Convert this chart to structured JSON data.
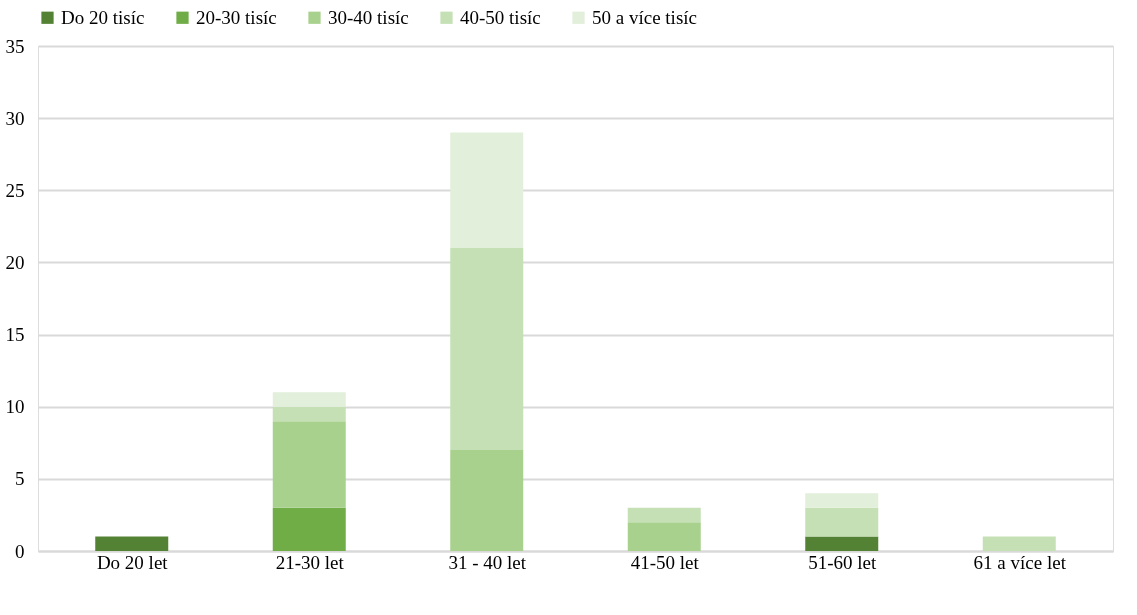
{
  "chart_data": {
    "type": "bar",
    "stacked": true,
    "categories": [
      "Do 20 let",
      "21-30 let",
      "31 - 40 let",
      "41-50 let",
      "51-60 let",
      "61 a více let"
    ],
    "series": [
      {
        "name": "Do 20 tisíc",
        "color": "#548235",
        "values": [
          1,
          null,
          null,
          null,
          1,
          null
        ]
      },
      {
        "name": "20-30 tisíc",
        "color": "#70ad47",
        "values": [
          null,
          3,
          null,
          null,
          null,
          null
        ]
      },
      {
        "name": "30-40 tisíc",
        "color": "#a9d18e",
        "values": [
          null,
          6,
          7,
          2,
          null,
          null
        ]
      },
      {
        "name": "40-50 tisíc",
        "color": "#c5e0b4",
        "values": [
          null,
          1,
          14,
          1,
          2,
          1
        ]
      },
      {
        "name": "50 a více tisíc",
        "color": "#e2efda",
        "values": [
          null,
          1,
          8,
          null,
          1,
          null
        ]
      }
    ],
    "ylim": [
      0,
      35
    ],
    "yticks": [
      0,
      5,
      10,
      15,
      20,
      25,
      30,
      35
    ],
    "grid": "y",
    "legend": "top"
  }
}
